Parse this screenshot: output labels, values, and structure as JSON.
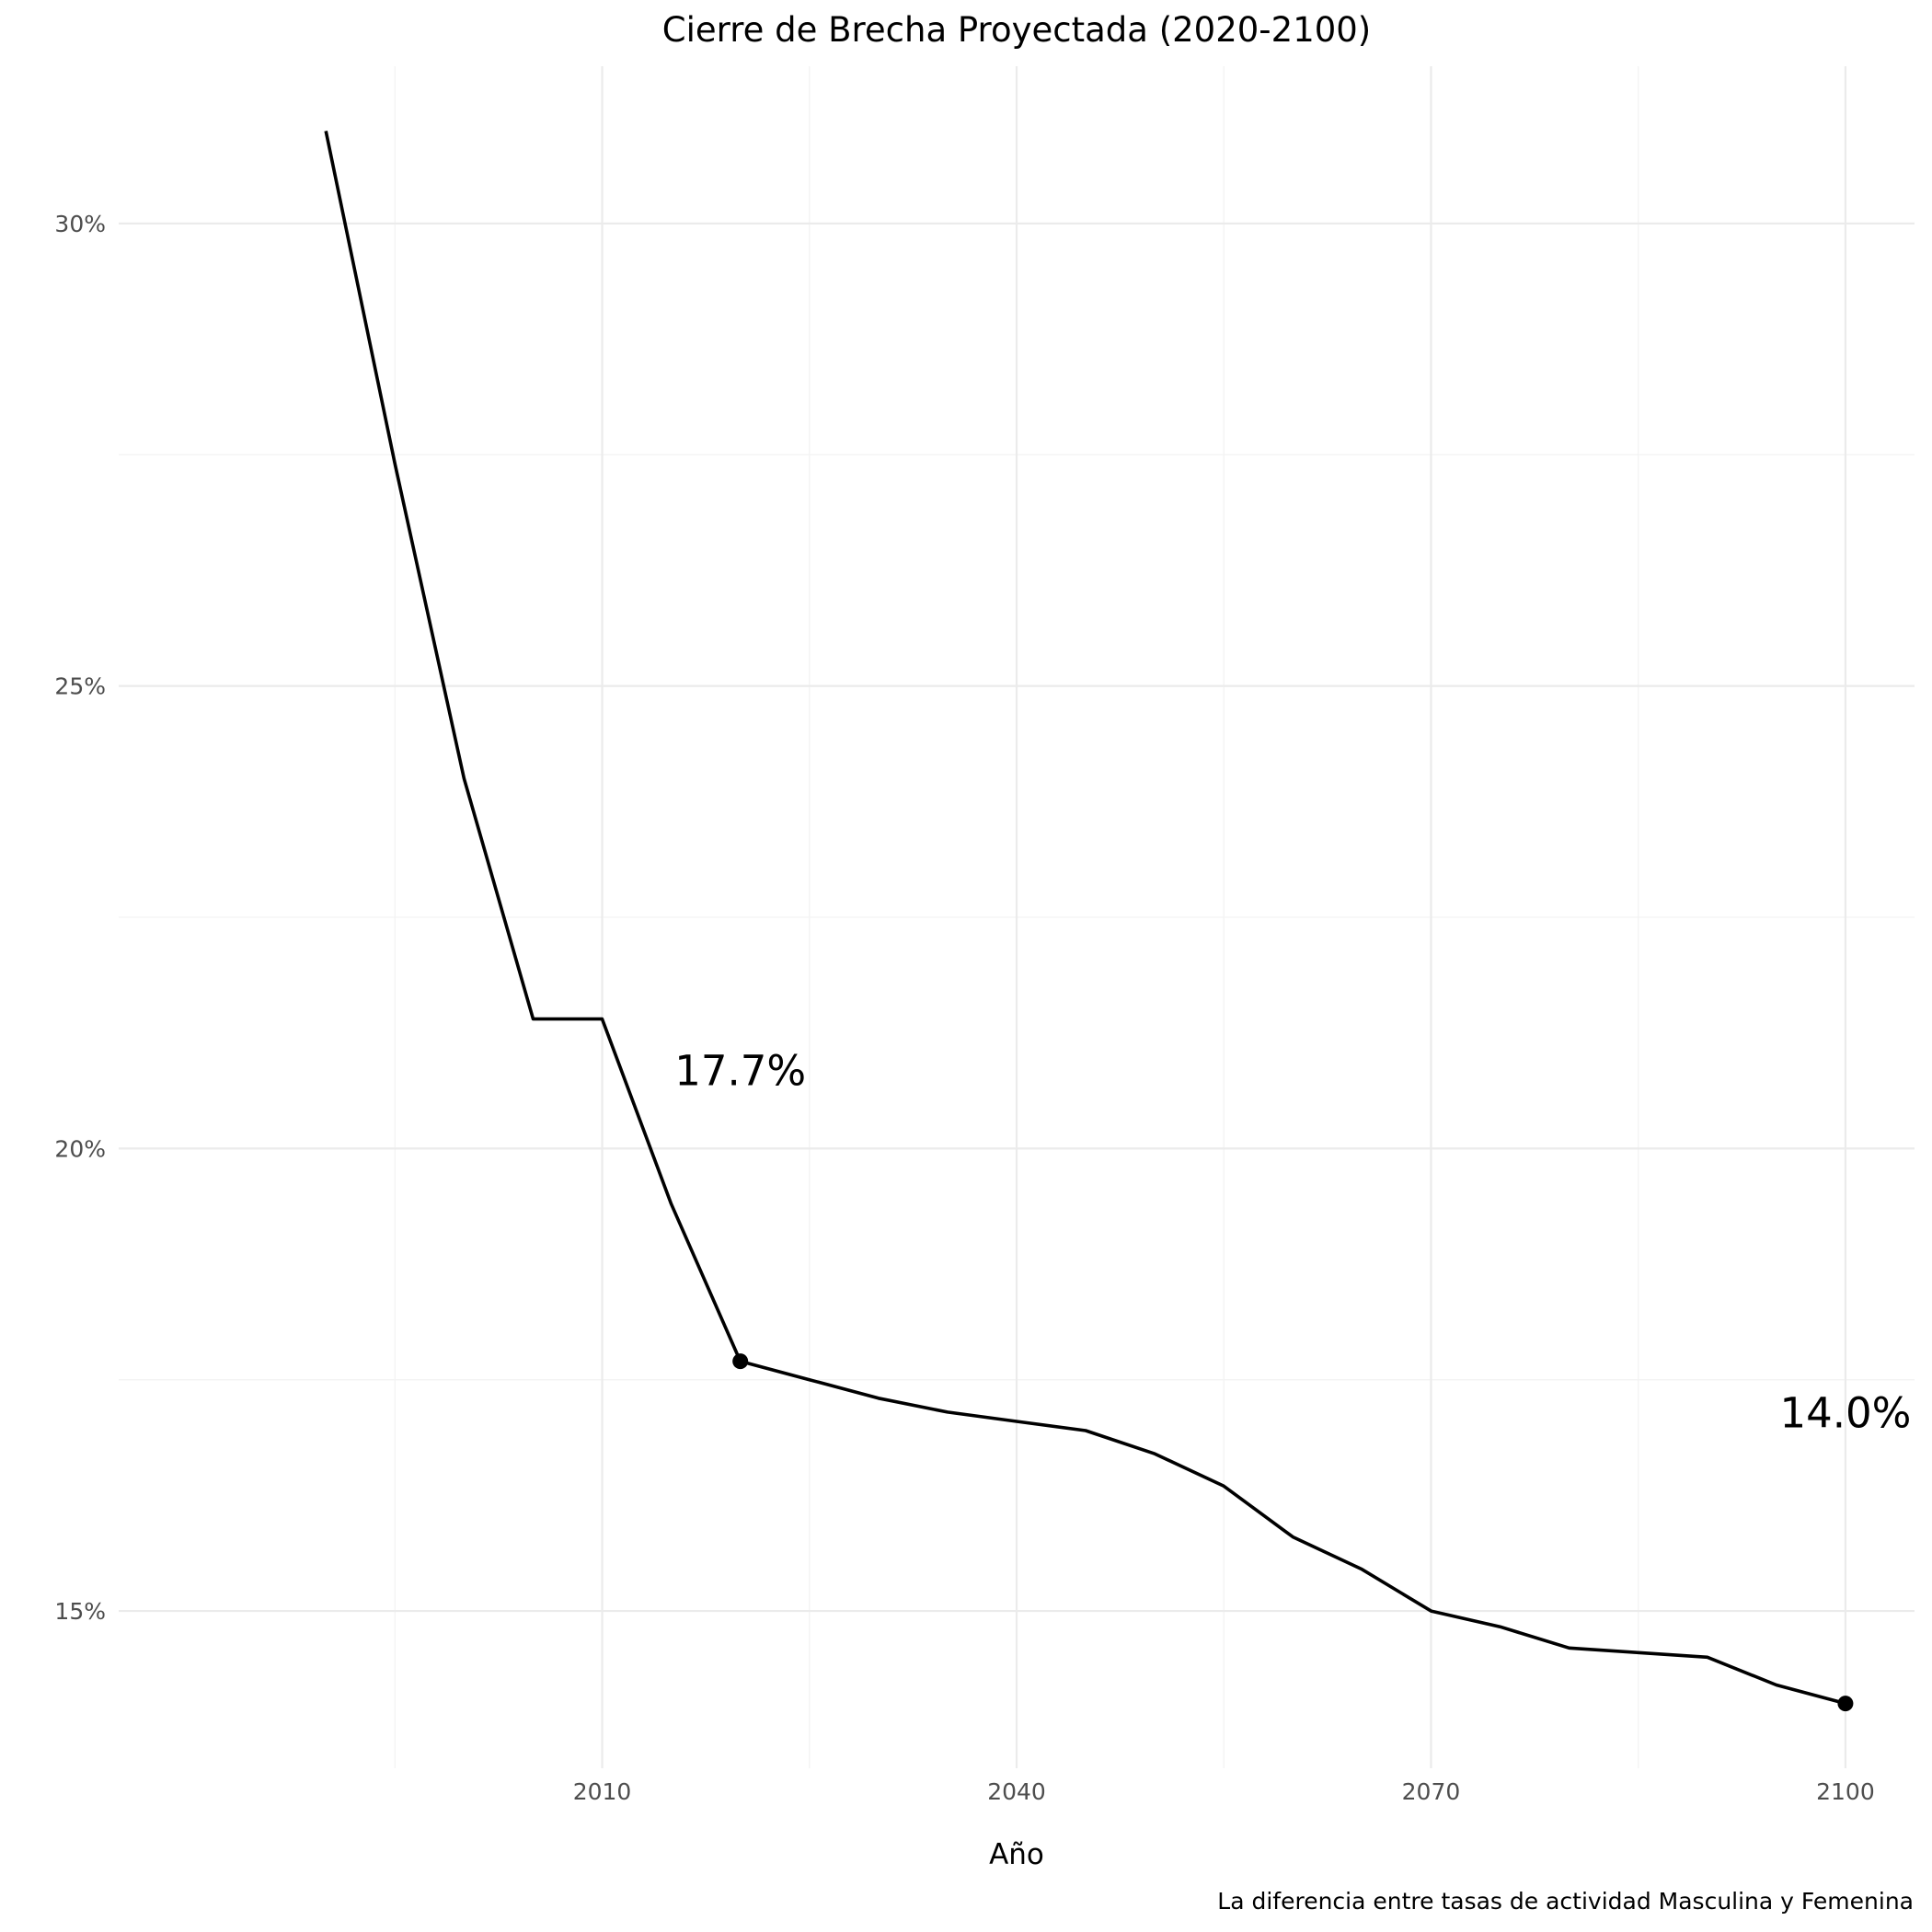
{
  "chart_data": {
    "type": "line",
    "title": "Cierre de Brecha Proyectada (2020-2100)",
    "xlabel": "Año",
    "ylabel": "",
    "caption": "La diferencia entre tasas de actividad Masculina y Femenina",
    "xlim": [
      1975,
      2105
    ],
    "ylim": [
      13.3,
      31.7
    ],
    "x_ticks": [
      2010,
      2040,
      2070,
      2100
    ],
    "x_tick_labels": [
      "2010",
      "2040",
      "2070",
      "2100"
    ],
    "x_minor_ticks": [
      1995,
      2025,
      2055,
      2085
    ],
    "y_ticks": [
      15,
      20,
      25,
      30
    ],
    "y_tick_labels": [
      "15%",
      "20%",
      "25%",
      "30%"
    ],
    "y_minor_ticks": [
      17.5,
      22.5,
      27.5
    ],
    "grid": true,
    "legend": "none",
    "series": [
      {
        "color": "#000000",
        "x": [
          1990,
          1995,
          2000,
          2005,
          2010,
          2015,
          2020,
          2025,
          2030,
          2035,
          2040,
          2045,
          2050,
          2055,
          2060,
          2065,
          2070,
          2075,
          2080,
          2085,
          2090,
          2095,
          2100
        ],
        "y": [
          31.0,
          27.4,
          24.0,
          21.4,
          21.4,
          19.4,
          17.7,
          17.5,
          17.3,
          17.15,
          17.05,
          16.95,
          16.7,
          16.35,
          15.8,
          15.45,
          15.0,
          14.83,
          14.6,
          14.55,
          14.5,
          14.2,
          14.0
        ]
      }
    ],
    "highlight_points": [
      {
        "x": 2020,
        "y": 17.7,
        "label": "17.7%"
      },
      {
        "x": 2100,
        "y": 14.0,
        "label": "14.0%"
      }
    ]
  }
}
